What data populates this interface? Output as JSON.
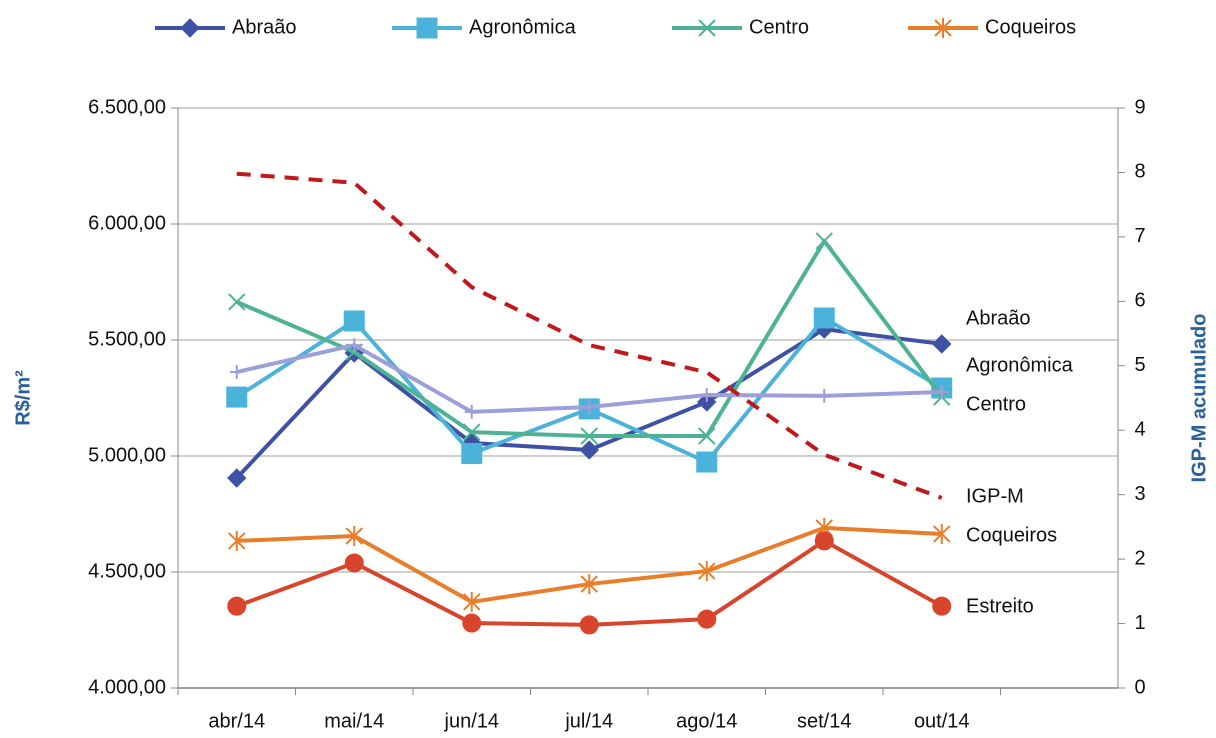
{
  "chart_data": {
    "type": "line",
    "categories": [
      "abr/14",
      "mai/14",
      "jun/14",
      "jul/14",
      "ago/14",
      "set/14",
      "out/14",
      null
    ],
    "ylabel": "R$/m²",
    "y2label": "IGP-M acumulado",
    "ylim": [
      4000,
      6500
    ],
    "yticks": [
      {
        "value": 4000,
        "label": "4.000,00"
      },
      {
        "value": 4500,
        "label": "4.500,00"
      },
      {
        "value": 5000,
        "label": "5.000,00"
      },
      {
        "value": 5500,
        "label": "5.500,00"
      },
      {
        "value": 6000,
        "label": "6.000,00"
      },
      {
        "value": 6500,
        "label": "6.500,00"
      }
    ],
    "y2lim": [
      0,
      9
    ],
    "y2ticks": [
      0,
      1,
      2,
      3,
      4,
      5,
      6,
      7,
      8,
      9
    ],
    "grid": true,
    "legend": "top",
    "series": [
      {
        "name": "Abraão",
        "color": "#3f51a5",
        "marker": "diamond",
        "values": [
          4905,
          5444,
          5056,
          5026,
          5233,
          5547,
          5483,
          null
        ]
      },
      {
        "name": "Agronômica",
        "color": "#4bb3d9",
        "marker": "square",
        "values": [
          5254,
          5582,
          5011,
          5203,
          4974,
          5595,
          5293,
          null
        ]
      },
      {
        "name": "Centro",
        "color": "#4db394",
        "marker": "x",
        "values": [
          5664,
          5448,
          5103,
          5086,
          5086,
          5927,
          5254,
          null
        ]
      },
      {
        "name": "Coqueiros",
        "color": "#e87d2b",
        "marker": "asterisk",
        "values": [
          4634,
          4655,
          4371,
          4448,
          4504,
          4690,
          4664,
          null
        ]
      },
      {
        "color": "#d9442c",
        "marker": "circle",
        "values": [
          4353,
          4539,
          4280,
          4272,
          4297,
          4634,
          4353,
          null
        ]
      },
      {
        "color": "#9d9fdb",
        "marker": "plus",
        "values": [
          5362,
          5478,
          5190,
          5211,
          5263,
          5259,
          5276,
          null
        ]
      },
      {
        "color": "#c0191c",
        "marker": "none",
        "dash": true,
        "axis": "y2",
        "values": [
          7.98,
          7.84,
          6.22,
          5.32,
          4.9,
          3.62,
          2.95,
          null
        ]
      }
    ],
    "annotations": [
      "Abraão",
      "Agronômica",
      "Centro",
      "IGP-M",
      "Coqueiros",
      "Estreito"
    ]
  }
}
